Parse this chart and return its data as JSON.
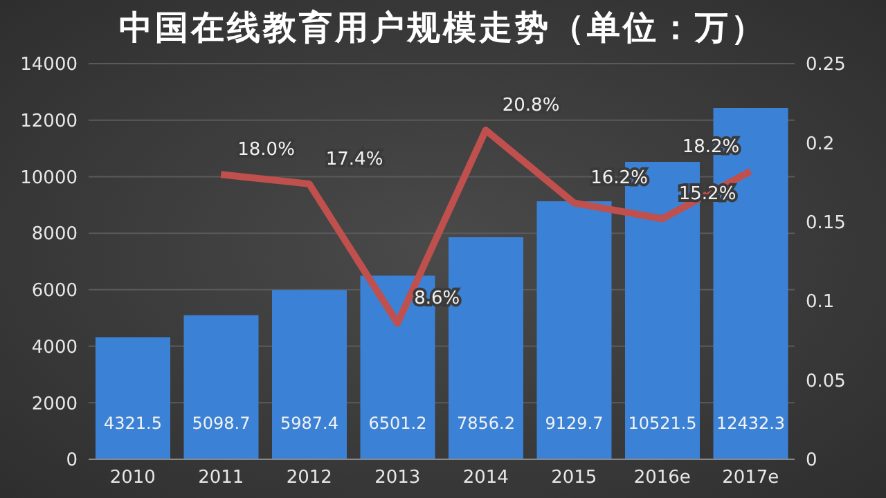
{
  "chart_data": {
    "type": "bar",
    "title": "中国在线教育用户规模走势（单位：万）",
    "categories": [
      "2010",
      "2011",
      "2012",
      "2013",
      "2014",
      "2015",
      "2016e",
      "2017e"
    ],
    "series": [
      {
        "color": "#3b82d6",
        "values": [
          4321.5,
          5098.7,
          5987.4,
          6501.2,
          7856.2,
          9129.7,
          10521.5,
          12432.3
        ],
        "value_labels": [
          "4321.5",
          "5098.7",
          "5987.4",
          "6501.2",
          "7856.2",
          "9129.7",
          "10521.5",
          "12432.3"
        ]
      },
      {
        "type": "line",
        "axis": "y2",
        "color": "#c0504d",
        "values": [
          null,
          0.18,
          0.174,
          0.086,
          0.208,
          0.162,
          0.152,
          0.182
        ],
        "value_labels": [
          null,
          "18.0%",
          "17.4%",
          "8.6%",
          "20.8%",
          "16.2%",
          "15.2%",
          "18.2%"
        ]
      }
    ],
    "ylim": [
      0,
      14000
    ],
    "yticks": [
      0,
      2000,
      4000,
      6000,
      8000,
      10000,
      12000,
      14000
    ],
    "y2lim": [
      0,
      0.25
    ],
    "y2ticks": [
      0,
      0.05,
      0.1,
      0.15,
      0.2,
      0.25
    ],
    "grid": "y",
    "legend": false,
    "marker": "none"
  }
}
